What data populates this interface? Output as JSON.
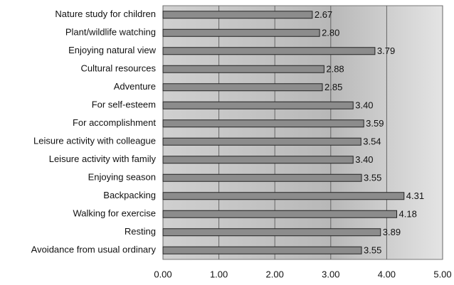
{
  "chart_data": {
    "type": "barh",
    "categories": [
      "Nature study for children",
      "Plant/wildlife watching",
      "Enjoying natural view",
      "Cultural resources",
      "Adventure",
      "For self-esteem",
      "For accomplishment",
      "Leisure activity with colleague",
      "Leisure activity with family",
      "Enjoying season",
      "Backpacking",
      "Walking for exercise",
      "Resting",
      "Avoidance from usual ordinary"
    ],
    "values": [
      2.67,
      2.8,
      3.79,
      2.88,
      2.85,
      3.4,
      3.59,
      3.54,
      3.4,
      3.55,
      4.31,
      4.18,
      3.89,
      3.55
    ],
    "value_labels": [
      "2.67",
      "2.80",
      "3.79",
      "2.88",
      "2.85",
      "3.40",
      "3.59",
      "3.54",
      "3.40",
      "3.55",
      "4.31",
      "4.18",
      "3.89",
      "3.55"
    ],
    "color": "#8c8c8c",
    "xlim": [
      0,
      5
    ],
    "xticks": [
      {
        "value": 0,
        "label": "0.00"
      },
      {
        "value": 1,
        "label": "1.00"
      },
      {
        "value": 2,
        "label": "2.00"
      },
      {
        "value": 3,
        "label": "3.00"
      },
      {
        "value": 4,
        "label": "4.00"
      },
      {
        "value": 5,
        "label": "5.00"
      }
    ],
    "grid": true
  }
}
